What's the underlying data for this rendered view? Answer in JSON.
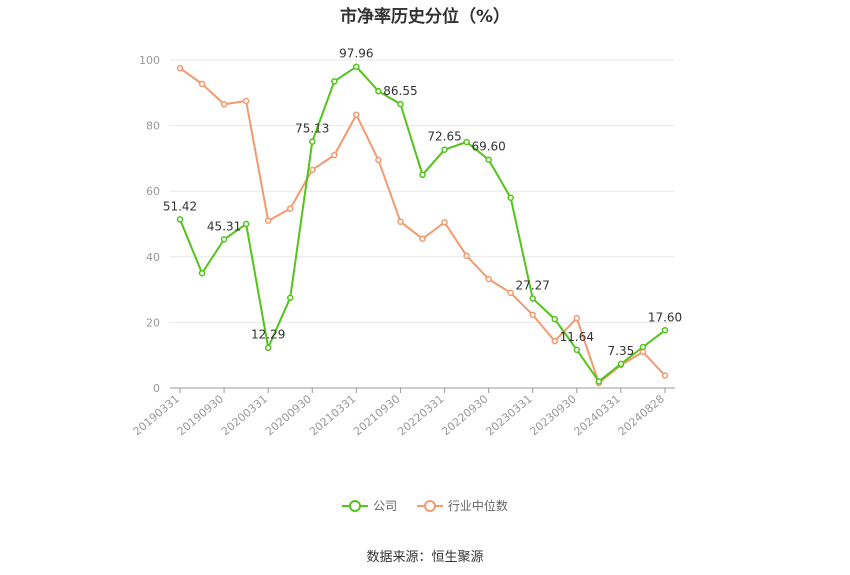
{
  "chart_data": {
    "type": "line",
    "title": "市净率历史分位（%）",
    "ylim": [
      0,
      100
    ],
    "yticks": [
      0,
      20,
      40,
      60,
      80,
      100
    ],
    "x_tick_labels": [
      "20190331",
      "20190930",
      "20200331",
      "20200930",
      "20210331",
      "20210930",
      "20220331",
      "20220930",
      "20230331",
      "20230930",
      "20240331",
      "20240828"
    ],
    "series": [
      {
        "name": "公司",
        "color": "#52c41a",
        "values": [
          51.42,
          35.0,
          45.31,
          50.0,
          12.29,
          27.5,
          75.13,
          93.5,
          97.96,
          90.5,
          86.55,
          65.0,
          72.65,
          75.0,
          69.6,
          58.0,
          27.27,
          21.0,
          11.64,
          2.0,
          7.35,
          12.5,
          17.6
        ],
        "labels": {
          "0": "51.42",
          "2": "45.31",
          "4": "12.29",
          "6": "75.13",
          "8": "97.96",
          "10": "86.55",
          "12": "72.65",
          "14": "69.60",
          "16": "27.27",
          "18": "11.64",
          "20": "7.35",
          "22": "17.60"
        }
      },
      {
        "name": "行业中位数",
        "color": "#f39a70",
        "values": [
          97.5,
          92.7,
          86.5,
          87.5,
          51.0,
          54.7,
          66.5,
          71.0,
          83.3,
          69.5,
          50.7,
          45.5,
          50.5,
          40.3,
          33.2,
          29.0,
          22.3,
          14.3,
          21.3,
          1.5,
          7.0,
          11.0,
          3.8
        ]
      }
    ],
    "grid": true,
    "legend_position": "bottom"
  },
  "source": "数据来源：恒生聚源"
}
